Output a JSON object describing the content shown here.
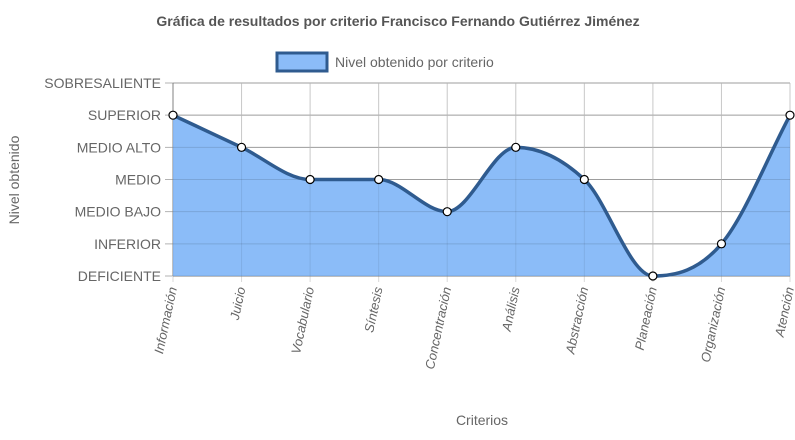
{
  "chart_data": {
    "type": "area",
    "title": "Gráfica de resultados por criterio Francisco Fernando Gutiérrez Jiménez",
    "xlabel": "Criterios",
    "ylabel": "Nivel obtenido",
    "categories": [
      "Información",
      "Juicio",
      "Vocabulario",
      "Síntesis",
      "Concentración",
      "Análisis",
      "Abstracción",
      "Planeación",
      "Organización",
      "Atención"
    ],
    "y_levels": [
      "DEFICIENTE",
      "INFERIOR",
      "MEDIO BAJO",
      "MEDIO",
      "MEDIO ALTO",
      "SUPERIOR",
      "SOBRESALIENTE"
    ],
    "ylim": [
      0,
      6
    ],
    "series": [
      {
        "name": "Nivel obtenido por criterio",
        "values": [
          5,
          4,
          3,
          3,
          2,
          4,
          3,
          0,
          1,
          5
        ],
        "fill_color": "#8bbcf8",
        "line_color": "#2f5b8f"
      }
    ],
    "legend": {
      "position": "top"
    },
    "grid": true
  }
}
